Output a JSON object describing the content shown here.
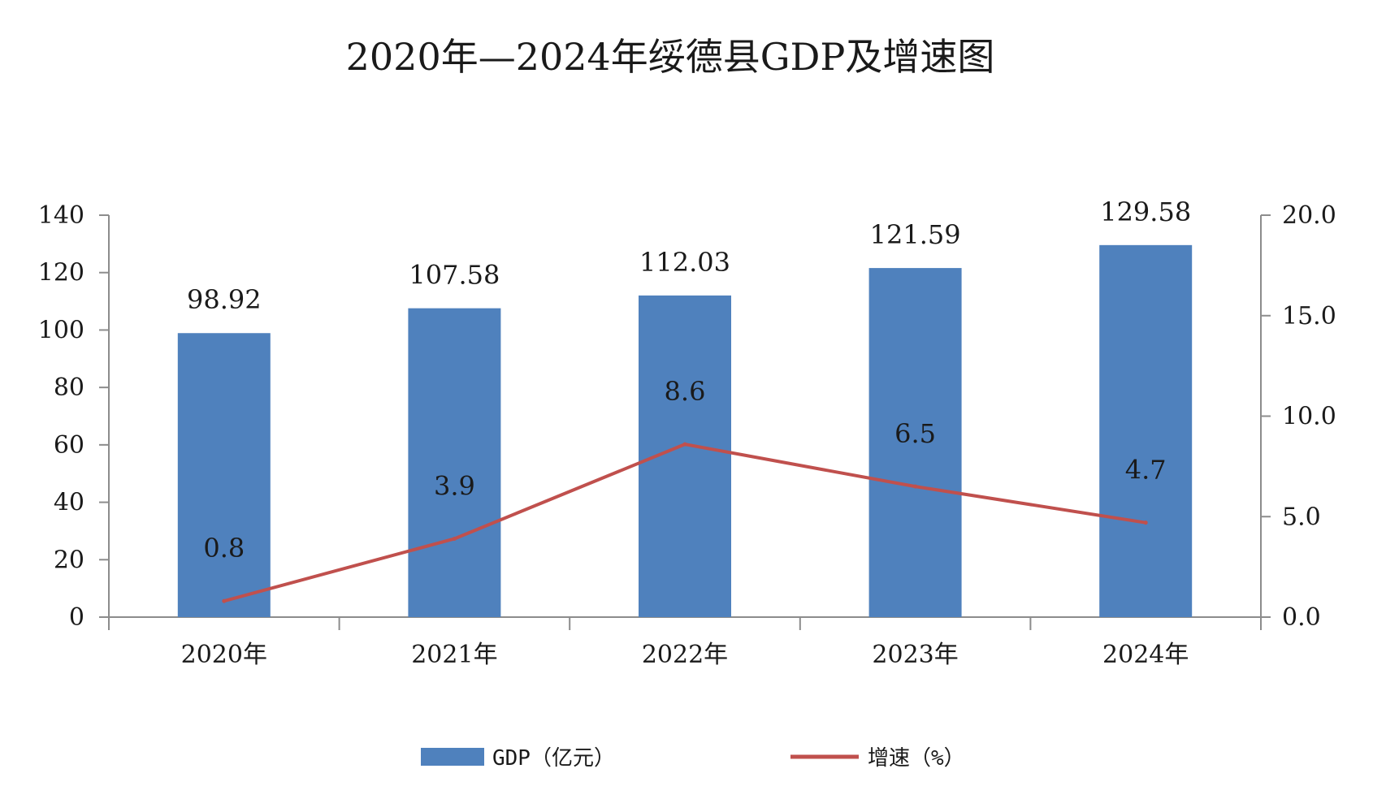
{
  "chart_data": {
    "type": "bar",
    "title": "2020年—2024年绥德县GDP及增速图",
    "categories": [
      "2020年",
      "2021年",
      "2022年",
      "2023年",
      "2024年"
    ],
    "series": [
      {
        "name": "GDP（亿元）",
        "type": "bar",
        "axis": "left",
        "color": "#4f81bd",
        "values": [
          98.92,
          107.58,
          112.03,
          121.59,
          129.58
        ],
        "labels": [
          "98.92",
          "107.58",
          "112.03",
          "121.59",
          "129.58"
        ]
      },
      {
        "name": "增速（%）",
        "type": "line",
        "axis": "right",
        "color": "#c0504d",
        "values": [
          0.8,
          3.9,
          8.6,
          6.5,
          4.7
        ],
        "labels": [
          "0.8",
          "3.9",
          "8.6",
          "6.5",
          "4.7"
        ]
      }
    ],
    "y_left": {
      "ylim": [
        0,
        140
      ],
      "ticks": [
        "0",
        "20",
        "40",
        "60",
        "80",
        "100",
        "120",
        "140"
      ]
    },
    "y_right": {
      "ylim": [
        0,
        20
      ],
      "ticks": [
        "0.0",
        "5.0",
        "10.0",
        "15.0",
        "20.0"
      ]
    },
    "grid": false,
    "legend": "bottom"
  }
}
